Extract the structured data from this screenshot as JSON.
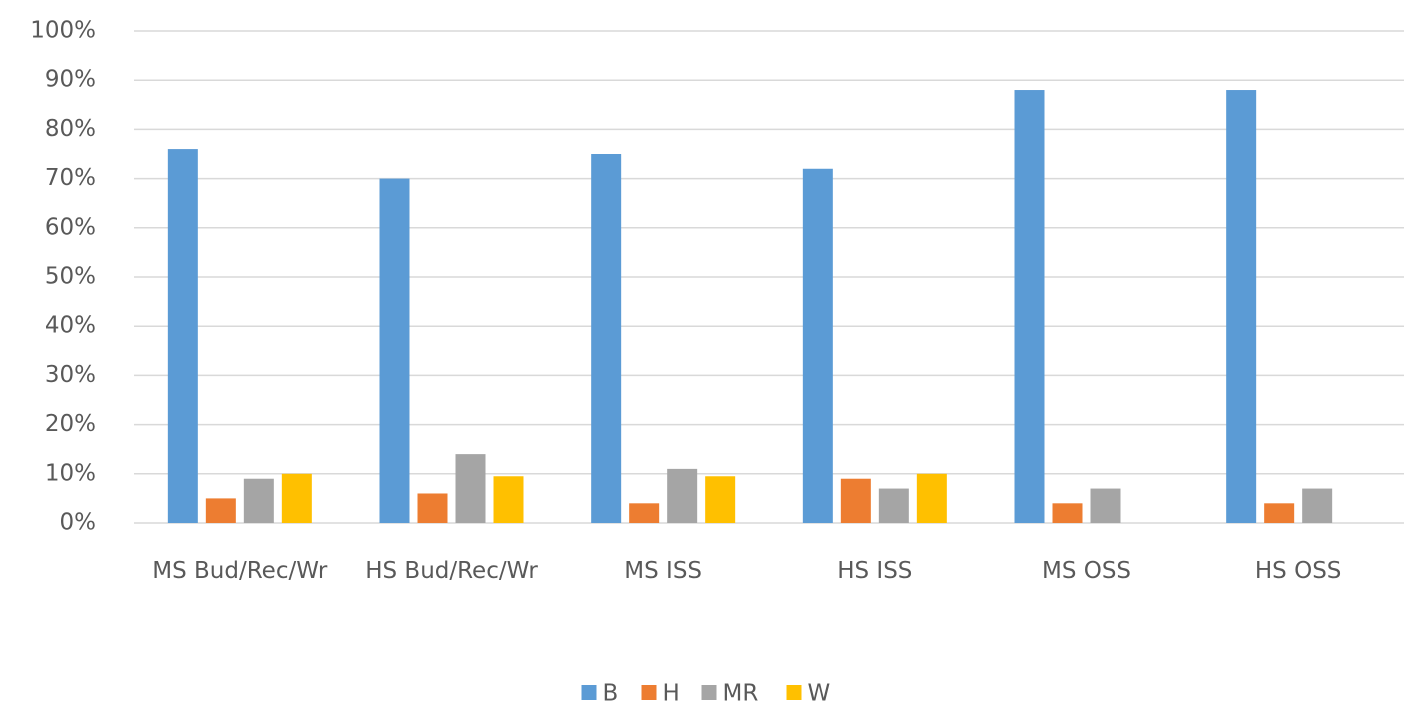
{
  "chart_data": {
    "type": "bar",
    "categories": [
      "MS Bud/Rec/Wr",
      "HS Bud/Rec/Wr",
      "MS ISS",
      "HS ISS",
      "MS OSS",
      "HS OSS"
    ],
    "series": [
      {
        "name": "B",
        "color": "#5b9bd5",
        "values": [
          76,
          70,
          75,
          72,
          88,
          88
        ]
      },
      {
        "name": "H",
        "color": "#ed7d31",
        "values": [
          5,
          6,
          4,
          9,
          4,
          4
        ]
      },
      {
        "name": "MR",
        "color": "#a5a5a5",
        "values": [
          9,
          14,
          11,
          7,
          7,
          7
        ]
      },
      {
        "name": "W",
        "color": "#ffc000",
        "values": [
          10,
          9.5,
          9.5,
          10,
          null,
          null
        ]
      }
    ],
    "ylim": [
      0,
      100
    ],
    "yticks": [
      {
        "value": 0,
        "label": "0%"
      },
      {
        "value": 10,
        "label": "10%"
      },
      {
        "value": 20,
        "label": "20%"
      },
      {
        "value": 30,
        "label": "30%"
      },
      {
        "value": 40,
        "label": "40%"
      },
      {
        "value": 50,
        "label": "50%"
      },
      {
        "value": 60,
        "label": "60%"
      },
      {
        "value": 70,
        "label": "70%"
      },
      {
        "value": 80,
        "label": "80%"
      },
      {
        "value": 90,
        "label": "90%"
      },
      {
        "value": 100,
        "label": "100%"
      }
    ],
    "grid": true,
    "legend": "bottom"
  }
}
